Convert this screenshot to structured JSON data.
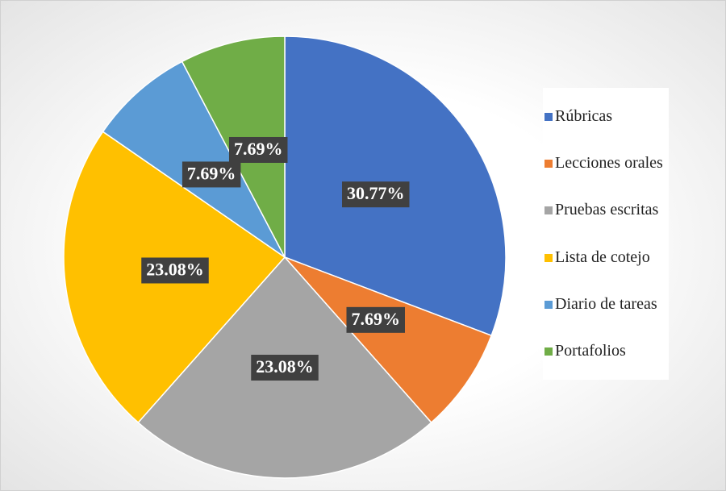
{
  "chart_data": {
    "type": "pie",
    "categories": [
      "Rúbricas",
      "Lecciones orales",
      "Pruebas escritas",
      "Lista de cotejo",
      "Diario de tareas",
      "Portafolios"
    ],
    "values": [
      30.77,
      7.69,
      23.08,
      23.08,
      7.69,
      7.69
    ],
    "value_labels": [
      "30.77%",
      "7.69%",
      "23.08%",
      "23.08%",
      "7.69%",
      "7.69%"
    ],
    "colors": [
      "#4472c4",
      "#ed7d31",
      "#a5a5a5",
      "#ffc000",
      "#5b9bd5",
      "#70ad47"
    ],
    "legend": "right"
  }
}
